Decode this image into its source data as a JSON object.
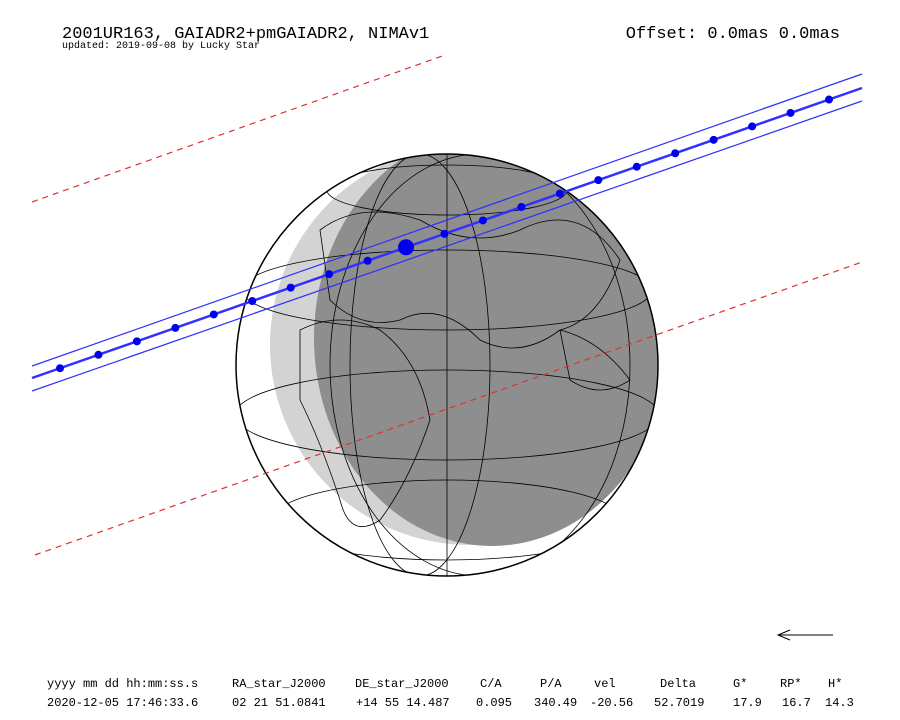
{
  "header": {
    "title": "2001UR163, GAIADR2+pmGAIADR2, NIMAv1",
    "subtitle": "updated: 2019-09-08 by Lucky Star",
    "offset": "Offset: 0.0mas 0.0mas"
  },
  "table": {
    "columns": [
      "yyyy mm dd hh:mm:ss.s",
      "RA_star_J2000",
      "DE_star_J2000",
      "C/A",
      "P/A",
      "vel",
      "Delta",
      "G*",
      "RP*",
      "H*"
    ],
    "rows": [
      [
        "2020-12-05 17:46:33.6",
        "02 21 51.0841",
        "+14 55 14.487",
        "0.095",
        "340.49",
        "-20.56",
        "52.7019",
        "17.9",
        "16.7",
        "14.3"
      ]
    ]
  }
}
